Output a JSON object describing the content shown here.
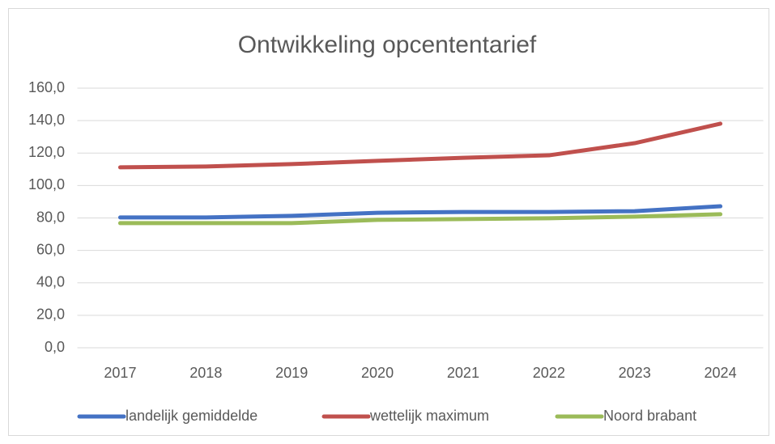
{
  "chart_data": {
    "type": "line",
    "title": "Ontwikkeling opcententarief",
    "categories": [
      "2017",
      "2018",
      "2019",
      "2020",
      "2021",
      "2022",
      "2023",
      "2024"
    ],
    "series": [
      {
        "name": "landelijk gemiddelde",
        "color": "#4472c4",
        "values": [
          80.3,
          80.3,
          81.3,
          83.2,
          83.7,
          83.7,
          84.2,
          87.2
        ]
      },
      {
        "name": "wettelijk maximum",
        "color": "#c0504d",
        "values": [
          111.2,
          111.7,
          113.2,
          115.2,
          117.1,
          118.6,
          126.1,
          138.1
        ]
      },
      {
        "name": "Noord brabant",
        "color": "#9bbb59",
        "values": [
          76.8,
          76.8,
          76.8,
          78.8,
          79.3,
          79.8,
          80.8,
          82.3
        ]
      }
    ],
    "ylim": [
      0,
      160
    ],
    "yticks": [
      {
        "value": 0,
        "label": "0,0"
      },
      {
        "value": 20,
        "label": "20,0"
      },
      {
        "value": 40,
        "label": "40,0"
      },
      {
        "value": 60,
        "label": "60,0"
      },
      {
        "value": 80,
        "label": "80,0"
      },
      {
        "value": 100,
        "label": "100,0"
      },
      {
        "value": 120,
        "label": "120,0"
      },
      {
        "value": 140,
        "label": "140,0"
      },
      {
        "value": 160,
        "label": "160,0"
      }
    ],
    "grid": true,
    "legend": "bottom"
  }
}
